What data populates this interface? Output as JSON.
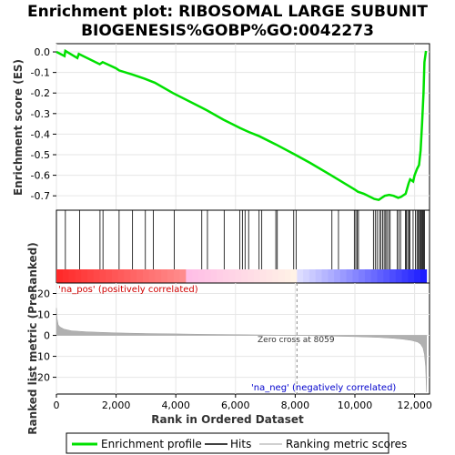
{
  "chart_data": {
    "type": "line",
    "title_line1": "Enrichment plot: RIBOSOMAL LARGE SUBUNIT",
    "title_line2": "BIOGENESIS%GOBP%GO:0042273",
    "xlabel": "Rank in Ordered Dataset",
    "ylabel_top": "Enrichment score (ES)",
    "ylabel_bottom": "Ranked list metric (PreRanked)",
    "xlim": [
      0,
      12500
    ],
    "x_ticks": [
      0,
      2000,
      4000,
      6000,
      8000,
      10000,
      12000
    ],
    "x_tick_labels": [
      "0",
      "2,000",
      "4,000",
      "6,000",
      "8,000",
      "10,000",
      "12,000"
    ],
    "es_ylim": [
      -0.77,
      0.04
    ],
    "es_ticks": [
      0.0,
      -0.1,
      -0.2,
      -0.3,
      -0.4,
      -0.5,
      -0.6,
      -0.7
    ],
    "es_tick_labels": [
      "0.0",
      "-0.1",
      "-0.2",
      "-0.3",
      "-0.4",
      "-0.5",
      "-0.6",
      "-0.7"
    ],
    "metric_ylim": [
      -28,
      25
    ],
    "metric_ticks": [
      20,
      10,
      0,
      -10,
      -20
    ],
    "metric_tick_labels": [
      "20",
      "10",
      "0",
      "-10",
      "-20"
    ],
    "es_curve": {
      "x": [
        0,
        270,
        300,
        700,
        750,
        1450,
        1550,
        2000,
        2100,
        2550,
        2950,
        3300,
        3900,
        4850,
        5050,
        5600,
        6150,
        6300,
        6450,
        6800,
        7350,
        8000,
        8500,
        9200,
        10000,
        10100,
        10300,
        10650,
        10800,
        10900,
        11000,
        11150,
        11300,
        11450,
        11550,
        11700,
        11800,
        11850,
        11950,
        12000,
        12080,
        12150,
        12200,
        12250,
        12300,
        12330,
        12380
      ],
      "y": [
        0.0,
        -0.02,
        0.005,
        -0.03,
        -0.01,
        -0.06,
        -0.05,
        -0.08,
        -0.09,
        -0.11,
        -0.13,
        -0.15,
        -0.2,
        -0.27,
        -0.285,
        -0.33,
        -0.37,
        -0.38,
        -0.39,
        -0.41,
        -0.45,
        -0.5,
        -0.54,
        -0.6,
        -0.67,
        -0.68,
        -0.69,
        -0.715,
        -0.72,
        -0.71,
        -0.7,
        -0.695,
        -0.7,
        -0.71,
        -0.705,
        -0.69,
        -0.64,
        -0.62,
        -0.63,
        -0.6,
        -0.57,
        -0.55,
        -0.48,
        -0.35,
        -0.2,
        -0.05,
        0.005
      ]
    },
    "hits": [
      300,
      780,
      1460,
      1560,
      2100,
      2550,
      2980,
      3250,
      3950,
      4870,
      5060,
      5620,
      6140,
      6230,
      6320,
      6440,
      6790,
      6880,
      7350,
      7400,
      7950,
      8030,
      9230,
      9450,
      9980,
      10030,
      10080,
      10120,
      10620,
      10680,
      10740,
      10820,
      10870,
      10930,
      10980,
      11030,
      11070,
      11130,
      11180,
      11420,
      11470,
      11530,
      11690,
      11720,
      11770,
      11810,
      11840,
      11950,
      12030,
      12080,
      12120,
      12160,
      12190,
      12220,
      12250,
      12270,
      12300,
      12330
    ],
    "metric_curve": {
      "x": [
        0,
        20,
        60,
        120,
        250,
        500,
        1000,
        2000,
        3000,
        4000,
        5000,
        6000,
        7000,
        8059,
        9000,
        10000,
        10800,
        11300,
        11600,
        11900,
        12100,
        12200,
        12280,
        12330,
        12370,
        12400
      ],
      "y": [
        13,
        8,
        5,
        4,
        3,
        2.2,
        1.7,
        1.2,
        0.9,
        0.7,
        0.5,
        0.35,
        0.2,
        0.0,
        -0.3,
        -0.6,
        -1.0,
        -1.4,
        -1.8,
        -2.4,
        -3.2,
        -4.2,
        -6,
        -9,
        -15,
        -27
      ]
    },
    "zero_cross_label": "Zero cross at 8059",
    "zero_cross": 8059,
    "pos_label": "'na_pos' (positively correlated)",
    "neg_label": "'na_neg' (negatively correlated)",
    "legend": [
      {
        "label": "Enrichment profile",
        "color": "#00e000"
      },
      {
        "label": "Hits",
        "color": "#000000"
      },
      {
        "label": "Ranking metric scores",
        "color": "#c0c0c0"
      }
    ],
    "colors": {
      "es": "#00e000",
      "hit": "#000000",
      "metric": "#aaaaaa",
      "pos": "#ff0000",
      "neg": "#0000ff"
    }
  }
}
